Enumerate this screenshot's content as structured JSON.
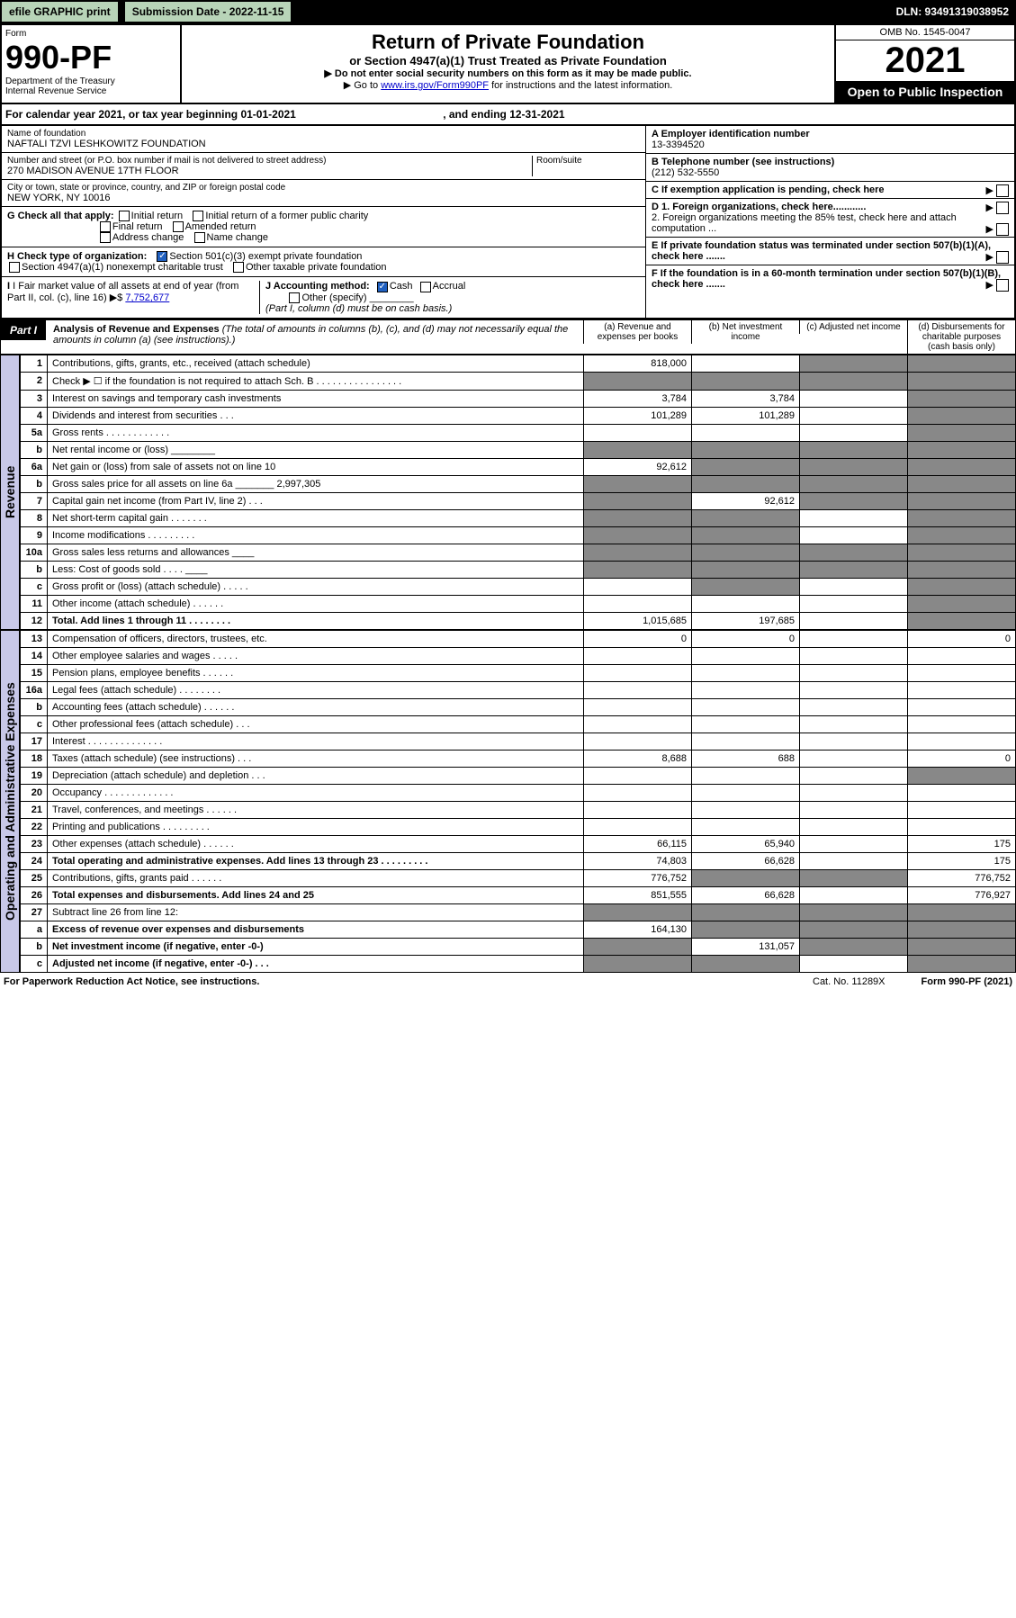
{
  "topbar": {
    "efile": "efile GRAPHIC print",
    "submission": "Submission Date - 2022-11-15",
    "dln": "DLN: 93491319038952"
  },
  "header": {
    "form_word": "Form",
    "form_num": "990-PF",
    "dept": "Department of the Treasury",
    "irs": "Internal Revenue Service",
    "title": "Return of Private Foundation",
    "subtitle": "or Section 4947(a)(1) Trust Treated as Private Foundation",
    "instr1": "▶ Do not enter social security numbers on this form as it may be made public.",
    "instr2_pre": "▶ Go to ",
    "instr2_link": "www.irs.gov/Form990PF",
    "instr2_post": " for instructions and the latest information.",
    "omb": "OMB No. 1545-0047",
    "year": "2021",
    "open": "Open to Public Inspection"
  },
  "calyear": {
    "text_pre": "For calendar year 2021, or tax year beginning ",
    "begin": "01-01-2021",
    "mid": " , and ending ",
    "end": "12-31-2021"
  },
  "entity": {
    "name_label": "Name of foundation",
    "name": "NAFTALI TZVI LESHKOWITZ FOUNDATION",
    "addr_label": "Number and street (or P.O. box number if mail is not delivered to street address)",
    "room_label": "Room/suite",
    "addr": "270 MADISON AVENUE 17TH FLOOR",
    "city_label": "City or town, state or province, country, and ZIP or foreign postal code",
    "city": "NEW YORK, NY  10016",
    "a_label": "A Employer identification number",
    "a_val": "13-3394520",
    "b_label": "B Telephone number (see instructions)",
    "b_val": "(212) 532-5550",
    "c_label": "C If exemption application is pending, check here",
    "d1": "D 1. Foreign organizations, check here............",
    "d2": "2. Foreign organizations meeting the 85% test, check here and attach computation ...",
    "e_label": "E If private foundation status was terminated under section 507(b)(1)(A), check here .......",
    "f_label": "F If the foundation is in a 60-month termination under section 507(b)(1)(B), check here .......",
    "g_label": "G Check all that apply:",
    "g_opts": [
      "Initial return",
      "Initial return of a former public charity",
      "Final return",
      "Amended return",
      "Address change",
      "Name change"
    ],
    "h_label": "H Check type of organization:",
    "h1": "Section 501(c)(3) exempt private foundation",
    "h2": "Section 4947(a)(1) nonexempt charitable trust",
    "h3": "Other taxable private foundation",
    "i_label": "I Fair market value of all assets at end of year (from Part II, col. (c), line 16)",
    "i_val": "7,752,677",
    "j_label": "J Accounting method:",
    "j_cash": "Cash",
    "j_accrual": "Accrual",
    "j_other": "Other (specify)",
    "j_note": "(Part I, column (d) must be on cash basis.)"
  },
  "part1": {
    "tag": "Part I",
    "title": "Analysis of Revenue and Expenses",
    "note": " (The total of amounts in columns (b), (c), and (d) may not necessarily equal the amounts in column (a) (see instructions).)",
    "col_a": "(a) Revenue and expenses per books",
    "col_b": "(b) Net investment income",
    "col_c": "(c) Adjusted net income",
    "col_d": "(d) Disbursements for charitable purposes (cash basis only)"
  },
  "side": {
    "revenue": "Revenue",
    "expenses": "Operating and Administrative Expenses"
  },
  "rows": [
    {
      "n": "1",
      "d": "Contributions, gifts, grants, etc., received (attach schedule)",
      "a": "818,000",
      "b": "",
      "c": "shade",
      "dd": "shade"
    },
    {
      "n": "2",
      "d": "Check ▶ ☐ if the foundation is not required to attach Sch. B   .  .  .  .  .  .  .  .  .  .  .  .  .  .  .  .",
      "a": "shade",
      "b": "shade",
      "c": "shade",
      "dd": "shade"
    },
    {
      "n": "3",
      "d": "Interest on savings and temporary cash investments",
      "a": "3,784",
      "b": "3,784",
      "c": "",
      "dd": "shade"
    },
    {
      "n": "4",
      "d": "Dividends and interest from securities   .   .   .",
      "a": "101,289",
      "b": "101,289",
      "c": "",
      "dd": "shade"
    },
    {
      "n": "5a",
      "d": "Gross rents   .   .   .   .   .   .   .   .   .   .   .   .",
      "a": "",
      "b": "",
      "c": "",
      "dd": "shade"
    },
    {
      "n": "b",
      "d": "Net rental income or (loss) ________",
      "a": "shade",
      "b": "shade",
      "c": "shade",
      "dd": "shade"
    },
    {
      "n": "6a",
      "d": "Net gain or (loss) from sale of assets not on line 10",
      "a": "92,612",
      "b": "shade",
      "c": "shade",
      "dd": "shade"
    },
    {
      "n": "b",
      "d": "Gross sales price for all assets on line 6a _______ 2,997,305",
      "a": "shade",
      "b": "shade",
      "c": "shade",
      "dd": "shade"
    },
    {
      "n": "7",
      "d": "Capital gain net income (from Part IV, line 2)   .   .   .",
      "a": "shade",
      "b": "92,612",
      "c": "shade",
      "dd": "shade"
    },
    {
      "n": "8",
      "d": "Net short-term capital gain   .   .   .   .   .   .   .",
      "a": "shade",
      "b": "shade",
      "c": "",
      "dd": "shade"
    },
    {
      "n": "9",
      "d": "Income modifications   .   .   .   .   .   .   .   .   .",
      "a": "shade",
      "b": "shade",
      "c": "",
      "dd": "shade"
    },
    {
      "n": "10a",
      "d": "Gross sales less returns and allowances   ____",
      "a": "shade",
      "b": "shade",
      "c": "shade",
      "dd": "shade"
    },
    {
      "n": "b",
      "d": "Less: Cost of goods sold   .   .   .   .   ____",
      "a": "shade",
      "b": "shade",
      "c": "shade",
      "dd": "shade"
    },
    {
      "n": "c",
      "d": "Gross profit or (loss) (attach schedule)   .   .   .   .   .",
      "a": "",
      "b": "shade",
      "c": "",
      "dd": "shade"
    },
    {
      "n": "11",
      "d": "Other income (attach schedule)   .   .   .   .   .   .",
      "a": "",
      "b": "",
      "c": "",
      "dd": "shade"
    },
    {
      "n": "12",
      "d": "Total. Add lines 1 through 11   .   .   .   .   .   .   .   .",
      "a": "1,015,685",
      "b": "197,685",
      "c": "",
      "dd": "shade",
      "bold": true
    }
  ],
  "exp_rows": [
    {
      "n": "13",
      "d": "Compensation of officers, directors, trustees, etc.",
      "a": "0",
      "b": "0",
      "c": "",
      "dd": "0"
    },
    {
      "n": "14",
      "d": "Other employee salaries and wages   .   .   .   .   .",
      "a": "",
      "b": "",
      "c": "",
      "dd": ""
    },
    {
      "n": "15",
      "d": "Pension plans, employee benefits   .   .   .   .   .   .",
      "a": "",
      "b": "",
      "c": "",
      "dd": ""
    },
    {
      "n": "16a",
      "d": "Legal fees (attach schedule)   .   .   .   .   .   .   .   .",
      "a": "",
      "b": "",
      "c": "",
      "dd": ""
    },
    {
      "n": "b",
      "d": "Accounting fees (attach schedule)   .   .   .   .   .   .",
      "a": "",
      "b": "",
      "c": "",
      "dd": ""
    },
    {
      "n": "c",
      "d": "Other professional fees (attach schedule)   .   .   .",
      "a": "",
      "b": "",
      "c": "",
      "dd": ""
    },
    {
      "n": "17",
      "d": "Interest   .   .   .   .   .   .   .   .   .   .   .   .   .   .",
      "a": "",
      "b": "",
      "c": "",
      "dd": ""
    },
    {
      "n": "18",
      "d": "Taxes (attach schedule) (see instructions)   .   .   .",
      "a": "8,688",
      "b": "688",
      "c": "",
      "dd": "0"
    },
    {
      "n": "19",
      "d": "Depreciation (attach schedule) and depletion   .   .   .",
      "a": "",
      "b": "",
      "c": "",
      "dd": "shade"
    },
    {
      "n": "20",
      "d": "Occupancy   .   .   .   .   .   .   .   .   .   .   .   .   .",
      "a": "",
      "b": "",
      "c": "",
      "dd": ""
    },
    {
      "n": "21",
      "d": "Travel, conferences, and meetings   .   .   .   .   .   .",
      "a": "",
      "b": "",
      "c": "",
      "dd": ""
    },
    {
      "n": "22",
      "d": "Printing and publications   .   .   .   .   .   .   .   .   .",
      "a": "",
      "b": "",
      "c": "",
      "dd": ""
    },
    {
      "n": "23",
      "d": "Other expenses (attach schedule)   .   .   .   .   .   .",
      "a": "66,115",
      "b": "65,940",
      "c": "",
      "dd": "175"
    },
    {
      "n": "24",
      "d": "Total operating and administrative expenses. Add lines 13 through 23   .   .   .   .   .   .   .   .   .",
      "a": "74,803",
      "b": "66,628",
      "c": "",
      "dd": "175",
      "bold": true
    },
    {
      "n": "25",
      "d": "Contributions, gifts, grants paid   .   .   .   .   .   .",
      "a": "776,752",
      "b": "shade",
      "c": "shade",
      "dd": "776,752"
    },
    {
      "n": "26",
      "d": "Total expenses and disbursements. Add lines 24 and 25",
      "a": "851,555",
      "b": "66,628",
      "c": "",
      "dd": "776,927",
      "bold": true
    },
    {
      "n": "27",
      "d": "Subtract line 26 from line 12:",
      "a": "shade",
      "b": "shade",
      "c": "shade",
      "dd": "shade"
    },
    {
      "n": "a",
      "d": "Excess of revenue over expenses and disbursements",
      "a": "164,130",
      "b": "shade",
      "c": "shade",
      "dd": "shade",
      "bold": true
    },
    {
      "n": "b",
      "d": "Net investment income (if negative, enter -0-)",
      "a": "shade",
      "b": "131,057",
      "c": "shade",
      "dd": "shade",
      "bold": true
    },
    {
      "n": "c",
      "d": "Adjusted net income (if negative, enter -0-)   .   .   .",
      "a": "shade",
      "b": "shade",
      "c": "",
      "dd": "shade",
      "bold": true
    }
  ],
  "footer": {
    "left": "For Paperwork Reduction Act Notice, see instructions.",
    "mid": "Cat. No. 11289X",
    "right": "Form 990-PF (2021)"
  }
}
